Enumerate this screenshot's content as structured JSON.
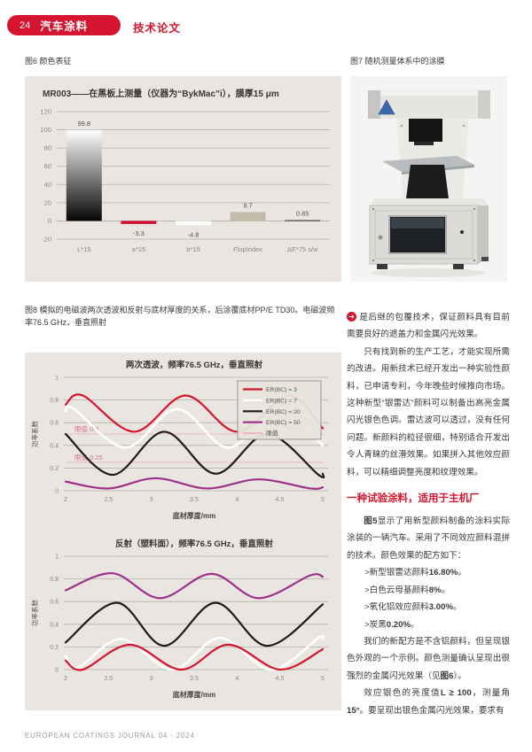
{
  "header": {
    "page_number": "24",
    "section": "汽车涂料",
    "article_type": "技术论文"
  },
  "captions": {
    "fig6": "图6 颜色表征",
    "fig7": "图7 随机测量体系中的涂膜",
    "fig8": "图8 模拟的电磁波两次透波和反射与底材厚度的关系，后涂覆底材PP/E TD30。电磁波频率76.5 GHz，垂直照射"
  },
  "colors": {
    "accent": "#d5152f",
    "panel_bg": "#e9e6e1",
    "grid": "#b3afa8",
    "photo_bg": "#f5f4f2"
  },
  "chart_data": [
    {
      "id": "fig6",
      "type": "bar",
      "title": "MR003——在黑板上测量（仪器为“BykMac”i），膜厚15 μm",
      "categories": [
        "L*15",
        "a*15",
        "b*15",
        "FlopIndex",
        "ΔE*75 s/w"
      ],
      "values": [
        99.8,
        -3.3,
        -4.8,
        9.7,
        0.85
      ],
      "value_labels": [
        "99.8",
        "-3.3",
        "-4.8",
        "9.7",
        "0.85"
      ],
      "ylim": [
        -20,
        120
      ],
      "yticks": [
        120,
        100,
        80,
        60,
        40,
        20,
        0,
        -20
      ],
      "bar_colors": [
        "gradient-white-to-black",
        "#ce0e2d",
        "#ffffff",
        "#c3bcab",
        "#2e2d2b"
      ],
      "grid": true,
      "background": "#e9e6e1",
      "xlabel": "",
      "ylabel": ""
    },
    {
      "id": "fig8a",
      "type": "line",
      "title": "两次透波，频率76.5 GHz，垂直照射",
      "xlabel": "底材厚度/mm",
      "ylabel": "功率系数",
      "xlim": [
        2,
        5
      ],
      "ylim": [
        0,
        1
      ],
      "xticks": [
        "2",
        "2.5",
        "3",
        "3.5",
        "4",
        "4.5",
        "5"
      ],
      "yticks": [
        "1",
        "0.8",
        "0.6",
        "0.4",
        "0.2",
        "0"
      ],
      "grid": true,
      "legend_position": "top-right",
      "legend": [
        {
          "label": "ER(BC) = 3",
          "color": "#d5152f"
        },
        {
          "label": "ER(BC) = 7",
          "color": "#ffffff"
        },
        {
          "label": "ER(BC) = 20",
          "color": "#1b1b1b"
        },
        {
          "label": "ER(BC) = 50",
          "color": "#9e2f8a"
        },
        {
          "label": "限值",
          "color": "#efb9c1"
        }
      ],
      "limit_lines": [
        {
          "y": 0.5,
          "label": "限值 0.5"
        },
        {
          "y": 0.25,
          "label": "限值 0.25"
        }
      ],
      "series": [
        {
          "name": "ER(BC) = 7",
          "color": "#ffffff",
          "points": [
            [
              2,
              0.7
            ],
            [
              2.1,
              0.72
            ],
            [
              2.7,
              0.38
            ],
            [
              3.3,
              0.72
            ],
            [
              3.9,
              0.38
            ],
            [
              4.5,
              0.72
            ],
            [
              5,
              0.4
            ]
          ]
        },
        {
          "name": "ER(BC) = 3",
          "color": "#d5152f",
          "points": [
            [
              2,
              0.76
            ],
            [
              2.2,
              0.84
            ],
            [
              2.8,
              0.52
            ],
            [
              3.4,
              0.84
            ],
            [
              4.0,
              0.52
            ],
            [
              4.6,
              0.84
            ],
            [
              5,
              0.55
            ]
          ]
        },
        {
          "name": "ER(BC) = 20",
          "color": "#1b1b1b",
          "points": [
            [
              2,
              0.5
            ],
            [
              2.55,
              0.14
            ],
            [
              3.15,
              0.52
            ],
            [
              3.75,
              0.15
            ],
            [
              4.35,
              0.5
            ],
            [
              4.95,
              0.14
            ],
            [
              5,
              0.15
            ]
          ]
        },
        {
          "name": "ER(BC) = 50",
          "color": "#9e2f8a",
          "points": [
            [
              2,
              0.08
            ],
            [
              2.5,
              0.02
            ],
            [
              3.05,
              0.11
            ],
            [
              3.65,
              0.02
            ],
            [
              4.25,
              0.1
            ],
            [
              4.85,
              0.02
            ],
            [
              5,
              0.03
            ]
          ]
        }
      ]
    },
    {
      "id": "fig8b",
      "type": "line",
      "title": "反射（塑料面），频率76.5 GHz，垂直照射",
      "xlabel": "底材厚度/mm",
      "ylabel": "功率系数",
      "xlim": [
        2,
        5
      ],
      "ylim": [
        0,
        1
      ],
      "xticks": [
        "2",
        "2.5",
        "3",
        "3.5",
        "4",
        "4.5",
        "5"
      ],
      "yticks": [
        "1",
        "0.8",
        "0.6",
        "0.4",
        "0.2",
        "0"
      ],
      "grid": true,
      "series": [
        {
          "name": "ER(BC) = 7",
          "color": "#ffffff",
          "points": [
            [
              2,
              0.12
            ],
            [
              2.15,
              0.02
            ],
            [
              2.65,
              0.27
            ],
            [
              3.25,
              0.0
            ],
            [
              3.8,
              0.28
            ],
            [
              4.4,
              0.0
            ],
            [
              4.95,
              0.28
            ],
            [
              5,
              0.27
            ]
          ]
        },
        {
          "name": "ER(BC) = 3",
          "color": "#d5152f",
          "points": [
            [
              2,
              0.08
            ],
            [
              2.2,
              0.0
            ],
            [
              2.75,
              0.22
            ],
            [
              3.35,
              0.0
            ],
            [
              3.9,
              0.22
            ],
            [
              4.5,
              0.0
            ],
            [
              5,
              0.18
            ]
          ]
        },
        {
          "name": "ER(BC) = 20",
          "color": "#1b1b1b",
          "points": [
            [
              2,
              0.24
            ],
            [
              2.6,
              0.59
            ],
            [
              3.15,
              0.21
            ],
            [
              3.75,
              0.59
            ],
            [
              4.35,
              0.21
            ],
            [
              5,
              0.575
            ]
          ]
        },
        {
          "name": "ER(BC) = 50",
          "color": "#9e2f8a",
          "points": [
            [
              2,
              0.7
            ],
            [
              2.55,
              0.85
            ],
            [
              3.1,
              0.63
            ],
            [
              3.7,
              0.845
            ],
            [
              4.25,
              0.63
            ],
            [
              4.85,
              0.83
            ],
            [
              5,
              0.82
            ]
          ]
        }
      ]
    }
  ],
  "article": {
    "marker": "➜",
    "p1": "是后继的包覆技术，保证颜料具有目前需要良好的遮盖力和金属闪光效果。",
    "p2": "只有找到新的生产工艺，才能实现所需的改进。用新技术已经开发出一种实验性颜料，已申请专利，今年晚些时候推向市场。这种新型“银雷达”颜料可以制备出高亮金属闪光银色色调。雷达波可以透过，没有任何问题。新颜料的粒径很细，特别适合开发出令人青睐的丝滑效果。如果拼入其他效应颜料，可以精细调整亮度和纹理效果。",
    "heading": "一种试验涂料，适用于主机厂",
    "p3_bold": "图5",
    "p3_rest": "显示了用新型颜料制备的涂料实际涂装的一辆汽车。采用了不同效应颜料混拼的技术。颜色效果的配方如下：",
    "recipe": [
      {
        "name": ">新型银雷达颜料",
        "value": "16.80%",
        "suffix": "。"
      },
      {
        "name": ">白色云母基颜料",
        "value": "8%",
        "suffix": "。"
      },
      {
        "name": ">氧化铝效应颜料",
        "value": "3.00%",
        "suffix": "。"
      },
      {
        "name": ">炭黑",
        "value": "0.20%",
        "suffix": "。"
      }
    ],
    "p4_a": "我们的新配方是不含铝颜料，但呈现银色外观的一个示例。颜色测量确认呈现出很强烈的金属闪光效果（见",
    "p4_bold": "图6",
    "p4_b": "）。",
    "p5_a": "效应银色的亮度值",
    "p5_bold1": "L ≥ 100",
    "p5_b": "，测量角",
    "p5_bold2": "15°",
    "p5_c": "。要呈现出银色金属闪光效果，要求有"
  },
  "footer": {
    "text": "EUROPEAN COATINGS JOURNAL 04 - 2024"
  }
}
